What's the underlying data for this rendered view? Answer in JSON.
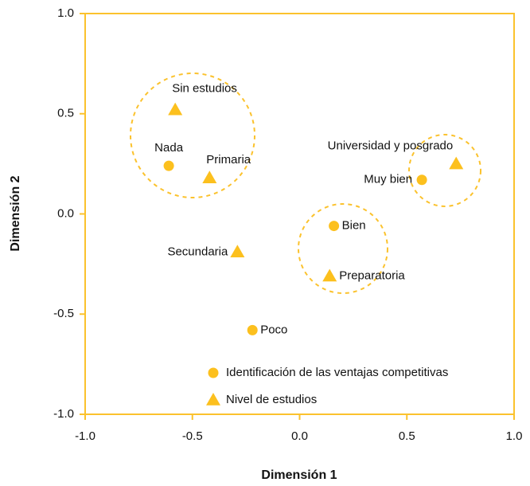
{
  "chart_data": {
    "type": "scatter",
    "xlabel": "Dimensión 1",
    "ylabel": "Dimensión 2",
    "xlim": [
      -1.0,
      1.0
    ],
    "ylim": [
      -1.0,
      1.0
    ],
    "xticks": [
      {
        "value": -1.0,
        "label": "-1.0"
      },
      -0.5,
      {
        "value": 0,
        "label": "0.0"
      },
      0.5,
      {
        "value": 1.0,
        "label": "1.0"
      }
    ],
    "yticks": [
      {
        "value": -1.0,
        "label": "-1.0"
      },
      -0.5,
      {
        "value": 0,
        "label": "0.0"
      },
      0.5,
      {
        "value": 1.0,
        "label": "1.0"
      }
    ],
    "grid": false,
    "legend": "lower center",
    "series": [
      {
        "name": "Identificación de las ventajas competitivas",
        "color": "#fcc01e",
        "marker": "circle",
        "labels": [
          "Nada",
          "Muy bien",
          "Bien",
          "Poco"
        ],
        "x": [
          -0.61,
          0.57,
          0.16,
          -0.22
        ],
        "values": [
          0.24,
          0.17,
          -0.06,
          -0.58
        ]
      },
      {
        "name": "Nivel de estudios",
        "color": "#fcc01e",
        "marker": "triangle",
        "labels": [
          "Sin estudios",
          "Primaria",
          "Secundaria",
          "Preparatoria",
          "Universidad y posgrado"
        ],
        "x": [
          -0.58,
          -0.42,
          -0.29,
          0.14,
          0.73
        ],
        "values": [
          0.52,
          0.18,
          -0.19,
          -0.31,
          0.25
        ]
      }
    ]
  }
}
